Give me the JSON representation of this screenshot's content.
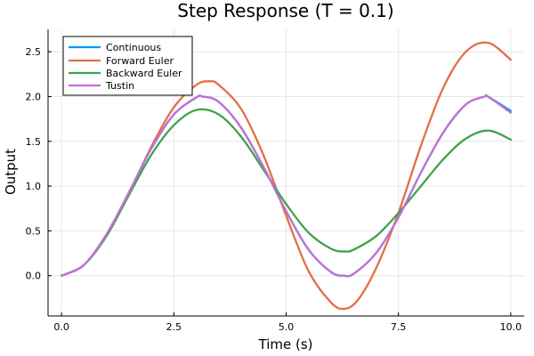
{
  "chart_data": {
    "type": "line",
    "title": "Step Response (T = 0.1)",
    "xlabel": "Time (s)",
    "ylabel": "Output",
    "xlim": [
      -0.3,
      10.3
    ],
    "ylim": [
      -0.45,
      2.75
    ],
    "xticks": [
      0.0,
      2.5,
      5.0,
      7.5,
      10.0
    ],
    "xtick_labels": [
      "0.0",
      "2.5",
      "5.0",
      "7.5",
      "10.0"
    ],
    "yticks": [
      0.0,
      0.5,
      1.0,
      1.5,
      2.0,
      2.5
    ],
    "ytick_labels": [
      "0.0",
      "0.5",
      "1.0",
      "1.5",
      "2.0",
      "2.5"
    ],
    "grid": true,
    "legend_position": "top-left",
    "series": [
      {
        "name": "Continuous",
        "color": "#009af9",
        "x": [
          0.0,
          0.5,
          1.0,
          1.5,
          2.0,
          2.5,
          3.0,
          3.14,
          3.5,
          4.0,
          4.5,
          5.0,
          5.5,
          6.0,
          6.28,
          6.5,
          7.0,
          7.5,
          8.0,
          8.5,
          9.0,
          9.42,
          9.5,
          10.0
        ],
        "y": [
          0.0,
          0.12,
          0.46,
          0.93,
          1.42,
          1.8,
          1.99,
          2.0,
          1.94,
          1.65,
          1.21,
          0.72,
          0.29,
          0.04,
          0.0,
          0.02,
          0.25,
          0.65,
          1.15,
          1.6,
          1.91,
          2.0,
          1.997,
          1.84
        ]
      },
      {
        "name": "Forward Euler",
        "color": "#e26f46",
        "x": [
          0.0,
          0.5,
          1.0,
          1.5,
          2.0,
          2.5,
          3.0,
          3.3,
          3.5,
          4.0,
          4.5,
          5.0,
          5.5,
          6.0,
          6.3,
          6.6,
          7.0,
          7.5,
          8.0,
          8.5,
          9.0,
          9.5,
          10.0
        ],
        "y": [
          0.0,
          0.12,
          0.46,
          0.92,
          1.44,
          1.88,
          2.13,
          2.17,
          2.13,
          1.86,
          1.34,
          0.67,
          0.05,
          -0.3,
          -0.37,
          -0.27,
          0.08,
          0.7,
          1.45,
          2.1,
          2.5,
          2.6,
          2.41
        ]
      },
      {
        "name": "Backward Euler",
        "color": "#3da44d",
        "x": [
          0.0,
          0.5,
          1.0,
          1.5,
          2.0,
          2.5,
          3.0,
          3.5,
          4.0,
          4.5,
          5.0,
          5.5,
          6.0,
          6.3,
          6.5,
          7.0,
          7.5,
          8.0,
          8.5,
          9.0,
          9.5,
          10.0
        ],
        "y": [
          0.0,
          0.12,
          0.44,
          0.9,
          1.35,
          1.68,
          1.85,
          1.8,
          1.55,
          1.18,
          0.8,
          0.48,
          0.3,
          0.27,
          0.29,
          0.44,
          0.7,
          1.0,
          1.3,
          1.53,
          1.62,
          1.52
        ]
      },
      {
        "name": "Tustin",
        "color": "#c271d2",
        "x": [
          0.0,
          0.5,
          1.0,
          1.5,
          2.0,
          2.5,
          3.0,
          3.14,
          3.5,
          4.0,
          4.5,
          5.0,
          5.5,
          6.0,
          6.28,
          6.5,
          7.0,
          7.5,
          8.0,
          8.5,
          9.0,
          9.42,
          9.5,
          10.0
        ],
        "y": [
          0.0,
          0.12,
          0.46,
          0.93,
          1.42,
          1.8,
          1.99,
          2.0,
          1.94,
          1.65,
          1.21,
          0.72,
          0.29,
          0.04,
          0.0,
          0.02,
          0.25,
          0.65,
          1.15,
          1.6,
          1.91,
          2.0,
          1.997,
          1.82
        ]
      }
    ]
  }
}
